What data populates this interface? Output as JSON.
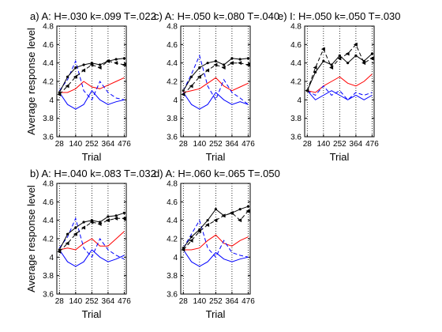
{
  "chart_data": {
    "type": "line",
    "ylabel": "Average response level",
    "xlabel": "Trial",
    "x": [
      28,
      84,
      140,
      196,
      252,
      308,
      364,
      420,
      476
    ],
    "xticks": [
      28,
      140,
      252,
      364,
      476
    ],
    "yticks": [
      3.6,
      3.8,
      4.0,
      4.2,
      4.4,
      4.6,
      4.8
    ],
    "ytick_labels": [
      "3.6",
      "3.8",
      "4",
      "4.2",
      "4.4",
      "4.6",
      "4.8"
    ],
    "ylim": [
      3.6,
      4.8
    ],
    "xlim": [
      10,
      490
    ],
    "vlines": [
      28,
      140,
      252,
      364,
      476
    ],
    "series_colors": {
      "black": "#000000",
      "red": "#ff0000",
      "blue": "#0000ff"
    },
    "panels": [
      {
        "title": "a) A: H=.030 k=.099 T=.022",
        "red": [
          4.08,
          4.08,
          4.12,
          4.2,
          4.14,
          4.12,
          4.16,
          4.2,
          4.24
        ],
        "blue": [
          4.08,
          3.95,
          3.9,
          3.95,
          4.1,
          4.0,
          3.95,
          3.98,
          4.0
        ],
        "blue_dashed": [
          4.1,
          4.22,
          4.42,
          4.1,
          4.0,
          4.2,
          4.08,
          4.02,
          4.0
        ],
        "black_solid": [
          4.08,
          4.25,
          4.35,
          4.38,
          4.4,
          4.38,
          4.42,
          4.44,
          4.45
        ],
        "black_dashed": [
          4.06,
          4.15,
          4.25,
          4.32,
          4.38,
          4.35,
          4.42,
          4.4,
          4.38
        ]
      },
      {
        "title": "c) A: H=.050 k=.080 T=.040",
        "red": [
          4.08,
          4.1,
          4.12,
          4.18,
          4.24,
          4.15,
          4.1,
          4.14,
          4.18
        ],
        "blue": [
          4.08,
          3.95,
          3.9,
          3.95,
          4.08,
          4.0,
          3.95,
          3.98,
          3.95
        ],
        "blue_dashed": [
          4.1,
          4.28,
          4.48,
          4.15,
          4.0,
          4.22,
          4.08,
          4.02,
          3.95
        ],
        "black_solid": [
          4.1,
          4.25,
          4.35,
          4.4,
          4.42,
          4.38,
          4.45,
          4.44,
          4.45
        ],
        "black_dashed": [
          4.06,
          4.15,
          4.25,
          4.32,
          4.38,
          4.35,
          4.4,
          4.4,
          4.38
        ]
      },
      {
        "title": "e) I: H=.050 k=.050 T=.030",
        "red": [
          4.1,
          4.08,
          4.15,
          4.2,
          4.25,
          4.18,
          4.15,
          4.2,
          4.28
        ],
        "blue": [
          4.1,
          4.0,
          4.05,
          4.1,
          4.05,
          4.0,
          4.05,
          4.0,
          4.05
        ],
        "blue_dashed": [
          4.1,
          4.05,
          4.15,
          4.05,
          4.1,
          4.0,
          4.08,
          4.05,
          4.08
        ],
        "black_solid": [
          4.1,
          4.3,
          4.42,
          4.38,
          4.48,
          4.4,
          4.48,
          4.42,
          4.5
        ],
        "black_dashed": [
          4.1,
          4.35,
          4.55,
          4.35,
          4.45,
          4.5,
          4.6,
          4.4,
          4.45
        ]
      },
      {
        "title": "b) A: H=.040 k=.083 T=.032",
        "red": [
          4.08,
          4.1,
          4.08,
          4.15,
          4.2,
          4.12,
          4.12,
          4.2,
          4.28
        ],
        "blue": [
          4.08,
          3.95,
          3.9,
          3.95,
          4.08,
          4.0,
          3.95,
          3.98,
          4.02
        ],
        "blue_dashed": [
          4.1,
          4.22,
          4.42,
          4.1,
          4.0,
          4.2,
          4.08,
          4.02,
          3.98
        ],
        "black_solid": [
          4.08,
          4.25,
          4.32,
          4.38,
          4.4,
          4.38,
          4.44,
          4.45,
          4.48
        ],
        "black_dashed": [
          4.06,
          4.15,
          4.25,
          4.32,
          4.38,
          4.36,
          4.4,
          4.42,
          4.42
        ]
      },
      {
        "title": "d) A: H=.060 k=.065 T=.050",
        "red": [
          4.08,
          4.08,
          4.1,
          4.18,
          4.24,
          4.15,
          4.12,
          4.18,
          4.22
        ],
        "blue": [
          4.08,
          3.95,
          3.9,
          3.95,
          4.05,
          3.98,
          3.95,
          3.98,
          4.0
        ],
        "blue_dashed": [
          4.1,
          4.25,
          4.4,
          4.1,
          4.0,
          4.18,
          4.05,
          4.02,
          4.0
        ],
        "black_solid": [
          4.1,
          4.22,
          4.3,
          4.4,
          4.52,
          4.45,
          4.48,
          4.52,
          4.55
        ],
        "black_dashed": [
          4.08,
          4.18,
          4.28,
          4.35,
          4.4,
          4.45,
          4.48,
          4.4,
          4.5
        ]
      }
    ]
  }
}
